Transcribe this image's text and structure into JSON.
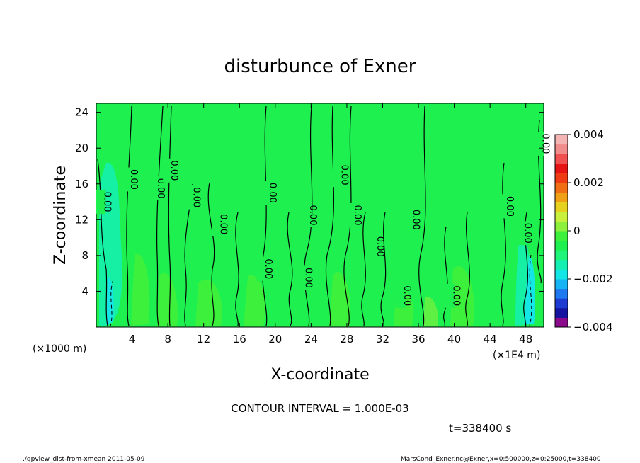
{
  "chart_data": {
    "type": "heatmap",
    "title": "disturbunce of Exner",
    "xlabel": "X-coordinate",
    "ylabel": "Z-coordinate",
    "x_unit_left": "(×1000 m)",
    "x_unit_right": "(×1E4 m)",
    "xlim": [
      0,
      50
    ],
    "ylim": [
      0,
      25
    ],
    "x_ticks": [
      "4",
      "8",
      "12",
      "16",
      "20",
      "24",
      "28",
      "32",
      "36",
      "40",
      "44",
      "48"
    ],
    "y_ticks": [
      "4",
      "8",
      "12",
      "16",
      "20",
      "24"
    ],
    "colorbar": {
      "labels": [
        "0.004",
        "0.002",
        "0",
        "−0.002",
        "−0.004"
      ],
      "range": [
        -0.004,
        0.004
      ],
      "colors": [
        "#8b0a8b",
        "#1414a0",
        "#1e3cd2",
        "#1e78f0",
        "#14b4f5",
        "#14e6e6",
        "#14f0b4",
        "#1ef57a",
        "#1ef050",
        "#3cf03c",
        "#8cf03c",
        "#c8f03c",
        "#e6d21e",
        "#f0a014",
        "#f06e14",
        "#f03c14",
        "#e61414",
        "#f05050",
        "#f08c8c",
        "#f5b4b4"
      ]
    },
    "contour_interval_text": "CONTOUR INTERVAL = 1.000E-03",
    "contour_labels": [
      {
        "x": 0.5,
        "z": 14.0,
        "text": "0.00"
      },
      {
        "x": 3.5,
        "z": 16.5,
        "text": "0.00"
      },
      {
        "x": 6.5,
        "z": 15.5,
        "text": "0.00"
      },
      {
        "x": 8.0,
        "z": 17.5,
        "text": "0.00"
      },
      {
        "x": 10.5,
        "z": 14.5,
        "text": "0.00"
      },
      {
        "x": 13.5,
        "z": 11.5,
        "text": "0.00"
      },
      {
        "x": 19.0,
        "z": 15.0,
        "text": "0.00"
      },
      {
        "x": 23.5,
        "z": 12.5,
        "text": "0.00"
      },
      {
        "x": 27.0,
        "z": 17.0,
        "text": "0.00"
      },
      {
        "x": 28.5,
        "z": 12.5,
        "text": "0.00"
      },
      {
        "x": 31.0,
        "z": 9.0,
        "text": "0.00"
      },
      {
        "x": 35.0,
        "z": 12.0,
        "text": "0.00"
      },
      {
        "x": 23.0,
        "z": 5.5,
        "text": "0.00"
      },
      {
        "x": 18.5,
        "z": 6.5,
        "text": "0.00"
      },
      {
        "x": 34.0,
        "z": 3.5,
        "text": "0.00"
      },
      {
        "x": 39.5,
        "z": 3.5,
        "text": "0.00"
      },
      {
        "x": 45.5,
        "z": 13.5,
        "text": "0.00"
      },
      {
        "x": 47.5,
        "z": 10.5,
        "text": "0.00"
      },
      {
        "x": 49.5,
        "z": 20.5,
        "text": "0.00"
      }
    ],
    "time_text": "t=338400 s"
  },
  "footer": {
    "left": "./gpview_dist-from-xmean 2011-05-09",
    "right": "MarsCond_Exner.nc@Exner,x=0:500000,z=0:25000,t=338400"
  }
}
